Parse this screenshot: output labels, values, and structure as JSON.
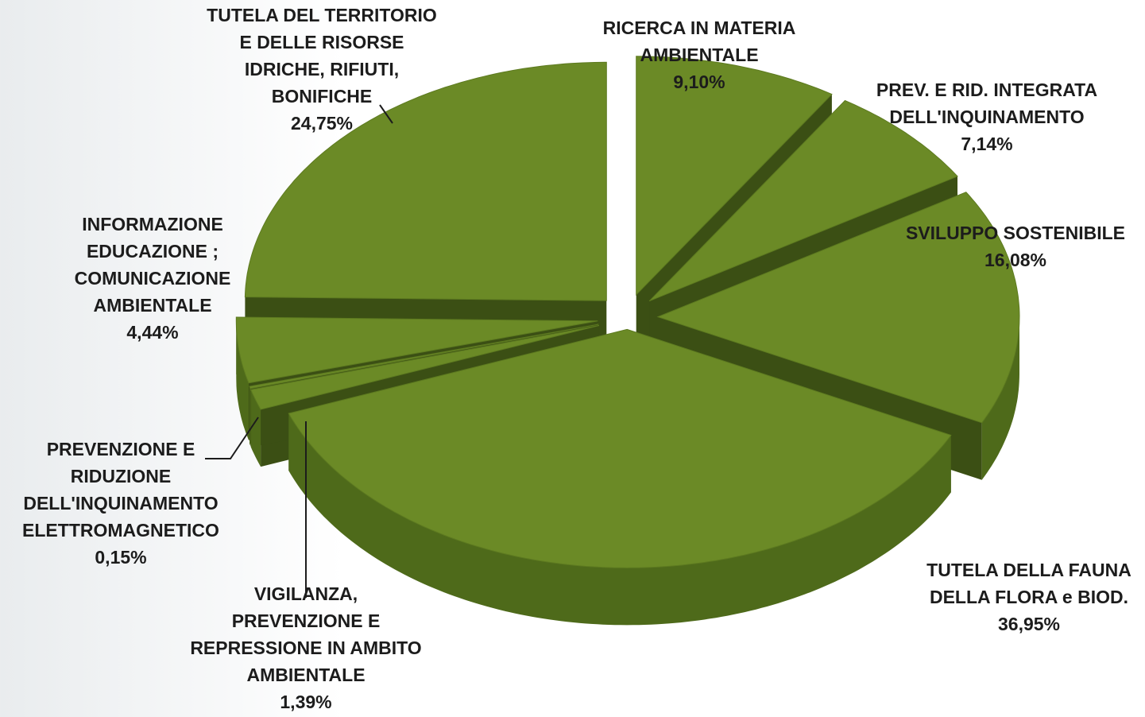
{
  "chart_data": {
    "type": "pie3d",
    "categories": [
      [
        "RICERCA IN MATERIA",
        "AMBIENTALE"
      ],
      [
        "PREV. E RID. INTEGRATA",
        "DELL'INQUINAMENTO"
      ],
      [
        "SVILUPPO SOSTENIBILE"
      ],
      [
        "TUTELA  DELLA FAUNA",
        "DELLA FLORA e BIOD."
      ],
      [
        "VIGILANZA,",
        "PREVENZIONE E",
        "REPRESSIONE IN AMBITO",
        "AMBIENTALE"
      ],
      [
        "PREVENZIONE E",
        "RIDUZIONE",
        "DELL'INQUINAMENTO",
        "ELETTROMAGNETICO"
      ],
      [
        "INFORMAZIONE",
        "EDUCAZIONE ;",
        "COMUNICAZIONE",
        "AMBIENTALE"
      ],
      [
        "TUTELA  DEL TERRITORIO",
        "E DELLE RISORSE",
        "IDRICHE, RIFIUTI,",
        "BONIFICHE"
      ]
    ],
    "values": [
      9.1,
      7.14,
      16.08,
      36.95,
      1.39,
      0.15,
      4.44,
      24.75
    ],
    "value_labels": [
      "9,10%",
      "7,14%",
      "16,08%",
      "36,95%",
      "1,39%",
      "0,15%",
      "4,44%",
      "24,75%"
    ],
    "color": "#6b8a26"
  }
}
